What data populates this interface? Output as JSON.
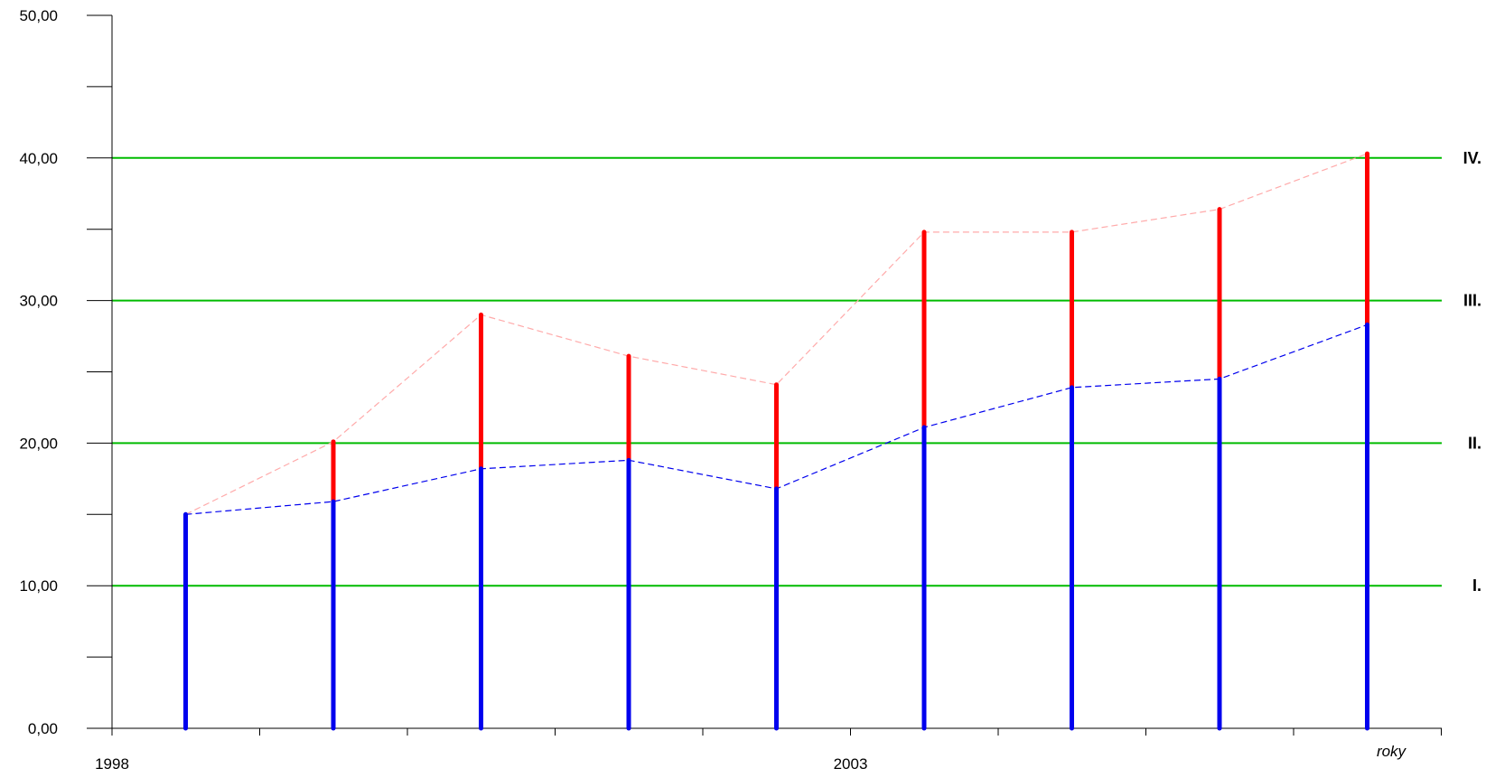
{
  "chart_data": {
    "type": "bar",
    "title": "",
    "xlabel": "roky",
    "ylabel": "",
    "ylim": [
      0,
      50
    ],
    "xlim": [
      1998,
      2007
    ],
    "x_ticks": [
      {
        "value": 1998,
        "label": "1998"
      },
      {
        "value": 2003,
        "label": "2003"
      }
    ],
    "y_ticks": [
      {
        "value": 0,
        "label": "0,00"
      },
      {
        "value": 10,
        "label": "10,00"
      },
      {
        "value": 20,
        "label": "20,00"
      },
      {
        "value": 30,
        "label": "30,00"
      },
      {
        "value": 40,
        "label": "40,00"
      },
      {
        "value": 50,
        "label": "50,00"
      }
    ],
    "y_minor_step": 5,
    "x_minor_step": 1,
    "threshold_lines": [
      {
        "value": 10,
        "label": "I."
      },
      {
        "value": 20,
        "label": "II."
      },
      {
        "value": 30,
        "label": "III."
      },
      {
        "value": 40,
        "label": "IV."
      }
    ],
    "x": [
      1999,
      2000,
      2001,
      2002,
      2003,
      2004,
      2005,
      2006,
      2007
    ],
    "series": [
      {
        "values": [
          15.0,
          15.9,
          18.2,
          18.8,
          16.8,
          21.1,
          23.9,
          24.5,
          28.3
        ]
      },
      {
        "values": [
          15.0,
          20.1,
          29.0,
          26.1,
          24.1,
          34.8,
          34.8,
          36.4,
          40.3
        ]
      }
    ],
    "colors": {
      "lower": "#0000ee",
      "upper": "#ff0000",
      "lower_trend": "#0000ee",
      "upper_trend": "#ffaaaa",
      "threshold": "#00bb00",
      "axis": "#000000"
    },
    "grid": false,
    "legend": "none"
  }
}
